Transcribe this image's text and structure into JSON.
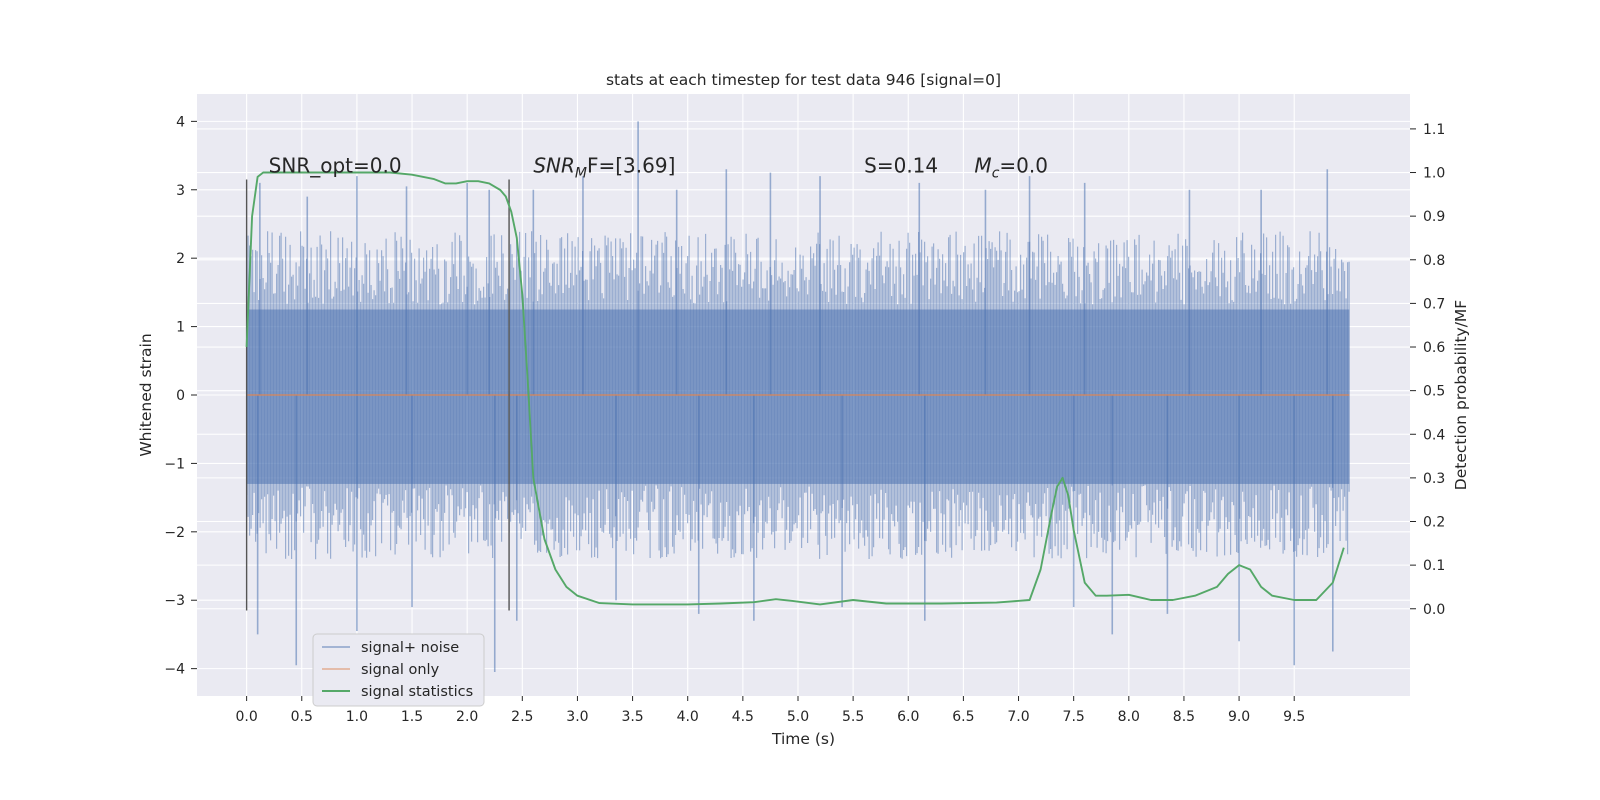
{
  "chart_data": {
    "type": "line",
    "title": "stats at each timestep for test data 946 [signal=0]",
    "xlabel": "Time (s)",
    "ylabel": "Whitened strain",
    "y2label": "Detection probability/MF",
    "xlim": [
      -0.45,
      10.55
    ],
    "ylim": [
      -4.4,
      4.4
    ],
    "y2lim": [
      -0.2,
      1.18
    ],
    "x_ticks": [
      0.0,
      0.5,
      1.0,
      1.5,
      2.0,
      2.5,
      3.0,
      3.5,
      4.0,
      4.5,
      5.0,
      5.5,
      6.0,
      6.5,
      7.0,
      7.5,
      8.0,
      8.5,
      9.0,
      9.5
    ],
    "x_tick_labels": [
      "0.0",
      "0.5",
      "1.0",
      "1.5",
      "2.0",
      "2.5",
      "3.0",
      "3.5",
      "4.0",
      "4.5",
      "5.0",
      "5.5",
      "6.0",
      "6.5",
      "7.0",
      "7.5",
      "8.0",
      "8.5",
      "9.0",
      "9.5"
    ],
    "y_ticks": [
      4,
      3,
      2,
      1,
      0,
      -1,
      -2,
      -3,
      -4
    ],
    "y_tick_labels": [
      "4",
      "3",
      "2",
      "1",
      "0",
      "−1",
      "−2",
      "−3",
      "−4"
    ],
    "y2_ticks": [
      1.1,
      1.0,
      0.9,
      0.8,
      0.7,
      0.6,
      0.5,
      0.4,
      0.3,
      0.2,
      0.1,
      0.0
    ],
    "y2_tick_labels": [
      "1.1",
      "1.0",
      "0.9",
      "0.8",
      "0.7",
      "0.6",
      "0.5",
      "0.4",
      "0.3",
      "0.2",
      "0.1",
      "0.0"
    ],
    "grid": true,
    "legend_position": "lower-left",
    "series": [
      {
        "name": "signal+ noise",
        "color": "#4c72b0",
        "axis": "left",
        "x_range": [
          0.0,
          10.0
        ],
        "band": [
          -1.3,
          1.25
        ],
        "typical_peak_range": [
          -2.4,
          2.4
        ],
        "spikes": [
          [
            0.12,
            3.1
          ],
          [
            0.55,
            2.9
          ],
          [
            1.0,
            3.2
          ],
          [
            1.45,
            3.05
          ],
          [
            2.0,
            3.1
          ],
          [
            2.2,
            3.0
          ],
          [
            2.6,
            3.0
          ],
          [
            3.05,
            3.2
          ],
          [
            3.55,
            4.0
          ],
          [
            3.9,
            3.0
          ],
          [
            4.35,
            3.3
          ],
          [
            4.75,
            3.25
          ],
          [
            5.2,
            3.2
          ],
          [
            6.1,
            3.1
          ],
          [
            6.7,
            3.0
          ],
          [
            7.1,
            3.2
          ],
          [
            7.6,
            3.1
          ],
          [
            8.55,
            3.0
          ],
          [
            9.2,
            3.0
          ],
          [
            9.8,
            3.3
          ],
          [
            0.1,
            -3.5
          ],
          [
            0.45,
            -3.95
          ],
          [
            1.0,
            -3.45
          ],
          [
            1.5,
            -3.1
          ],
          [
            2.25,
            -4.05
          ],
          [
            2.45,
            -3.3
          ],
          [
            3.35,
            -3.0
          ],
          [
            4.1,
            -3.2
          ],
          [
            4.6,
            -3.3
          ],
          [
            5.4,
            -3.1
          ],
          [
            6.15,
            -3.3
          ],
          [
            7.5,
            -3.1
          ],
          [
            7.85,
            -3.5
          ],
          [
            8.35,
            -3.2
          ],
          [
            9.0,
            -3.6
          ],
          [
            9.5,
            -3.95
          ],
          [
            9.85,
            -3.75
          ]
        ]
      },
      {
        "name": "signal only",
        "color": "#dd8452",
        "axis": "left",
        "x": [
          0.0,
          10.0
        ],
        "values": [
          0.0,
          0.0
        ]
      },
      {
        "name": "signal statistics",
        "color": "#55a868",
        "axis": "right",
        "x": [
          0.0,
          0.05,
          0.1,
          0.15,
          0.2,
          0.3,
          0.5,
          1.0,
          1.3,
          1.5,
          1.7,
          1.8,
          1.9,
          2.0,
          2.1,
          2.2,
          2.3,
          2.35,
          2.4,
          2.45,
          2.5,
          2.55,
          2.6,
          2.7,
          2.8,
          2.9,
          3.0,
          3.2,
          3.5,
          4.0,
          4.3,
          4.6,
          4.8,
          4.95,
          5.2,
          5.5,
          5.8,
          6.3,
          6.8,
          7.1,
          7.2,
          7.3,
          7.35,
          7.4,
          7.45,
          7.5,
          7.6,
          7.7,
          7.8,
          8.0,
          8.2,
          8.4,
          8.6,
          8.8,
          8.9,
          9.0,
          9.1,
          9.2,
          9.3,
          9.5,
          9.7,
          9.85,
          9.95
        ],
        "values": [
          0.6,
          0.9,
          0.99,
          1.0,
          1.0,
          1.0,
          1.0,
          1.0,
          1.0,
          0.995,
          0.985,
          0.975,
          0.975,
          0.98,
          0.98,
          0.975,
          0.96,
          0.945,
          0.91,
          0.85,
          0.72,
          0.52,
          0.3,
          0.16,
          0.09,
          0.05,
          0.03,
          0.013,
          0.01,
          0.01,
          0.012,
          0.015,
          0.022,
          0.018,
          0.01,
          0.02,
          0.012,
          0.012,
          0.014,
          0.02,
          0.09,
          0.22,
          0.28,
          0.3,
          0.26,
          0.18,
          0.06,
          0.03,
          0.03,
          0.032,
          0.02,
          0.02,
          0.03,
          0.05,
          0.08,
          0.1,
          0.09,
          0.05,
          0.03,
          0.02,
          0.02,
          0.06,
          0.14
        ]
      }
    ],
    "vlines": [
      {
        "x": 0.0
      },
      {
        "x": 2.38
      }
    ],
    "annotations": [
      {
        "text": "SNR_opt=0.0",
        "x": 0.2,
        "y": 3.25
      },
      {
        "text_main": "SNR",
        "text_sub": "M",
        "text_after": "F=[3.69]",
        "x": 2.6,
        "y": 3.25
      },
      {
        "text": "S=0.14",
        "x": 5.6,
        "y": 3.25
      },
      {
        "text_main": "M",
        "text_sub": "c",
        "text_after": "=0.0",
        "x": 6.6,
        "y": 3.25
      }
    ]
  }
}
